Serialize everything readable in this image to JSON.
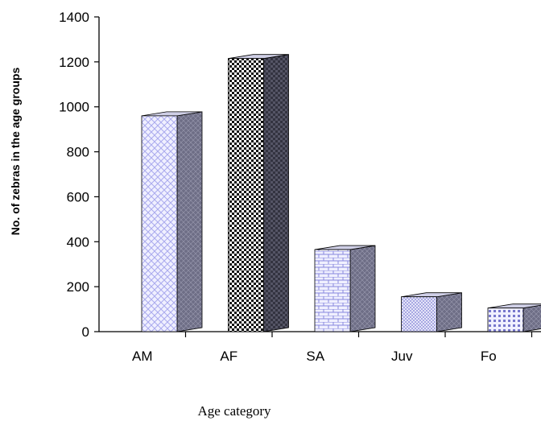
{
  "chart_data": {
    "type": "bar",
    "categories": [
      "AM",
      "AF",
      "SA",
      "Juv",
      "Fo"
    ],
    "values": [
      960,
      1215,
      365,
      155,
      105
    ],
    "xlabel": "Age category",
    "ylabel": "No. of zebras in the age groups",
    "ylim": [
      0,
      1400
    ],
    "yticks": [
      "1400",
      "1200",
      "1000",
      "800",
      "600",
      "400",
      "200",
      "0"
    ],
    "ytick_values": [
      1400,
      1200,
      1000,
      800,
      600,
      400,
      200,
      0
    ],
    "grid": false,
    "style": "3d-column",
    "patterns": [
      "crosshatch",
      "checker",
      "brick",
      "diamond",
      "dots"
    ],
    "colors": {
      "front": [
        "#f0f0ff",
        "#ffffff",
        "#f0f0ff",
        "#f5f5ff",
        "#f0f0ff"
      ],
      "pattern": [
        "#aaaaee",
        "#111111",
        "#8888dd",
        "#9999dd",
        "#7777cc"
      ],
      "side": "#6e6e86",
      "top": "#cfcfe6",
      "outline": "#000000",
      "axis": "#000000"
    }
  }
}
